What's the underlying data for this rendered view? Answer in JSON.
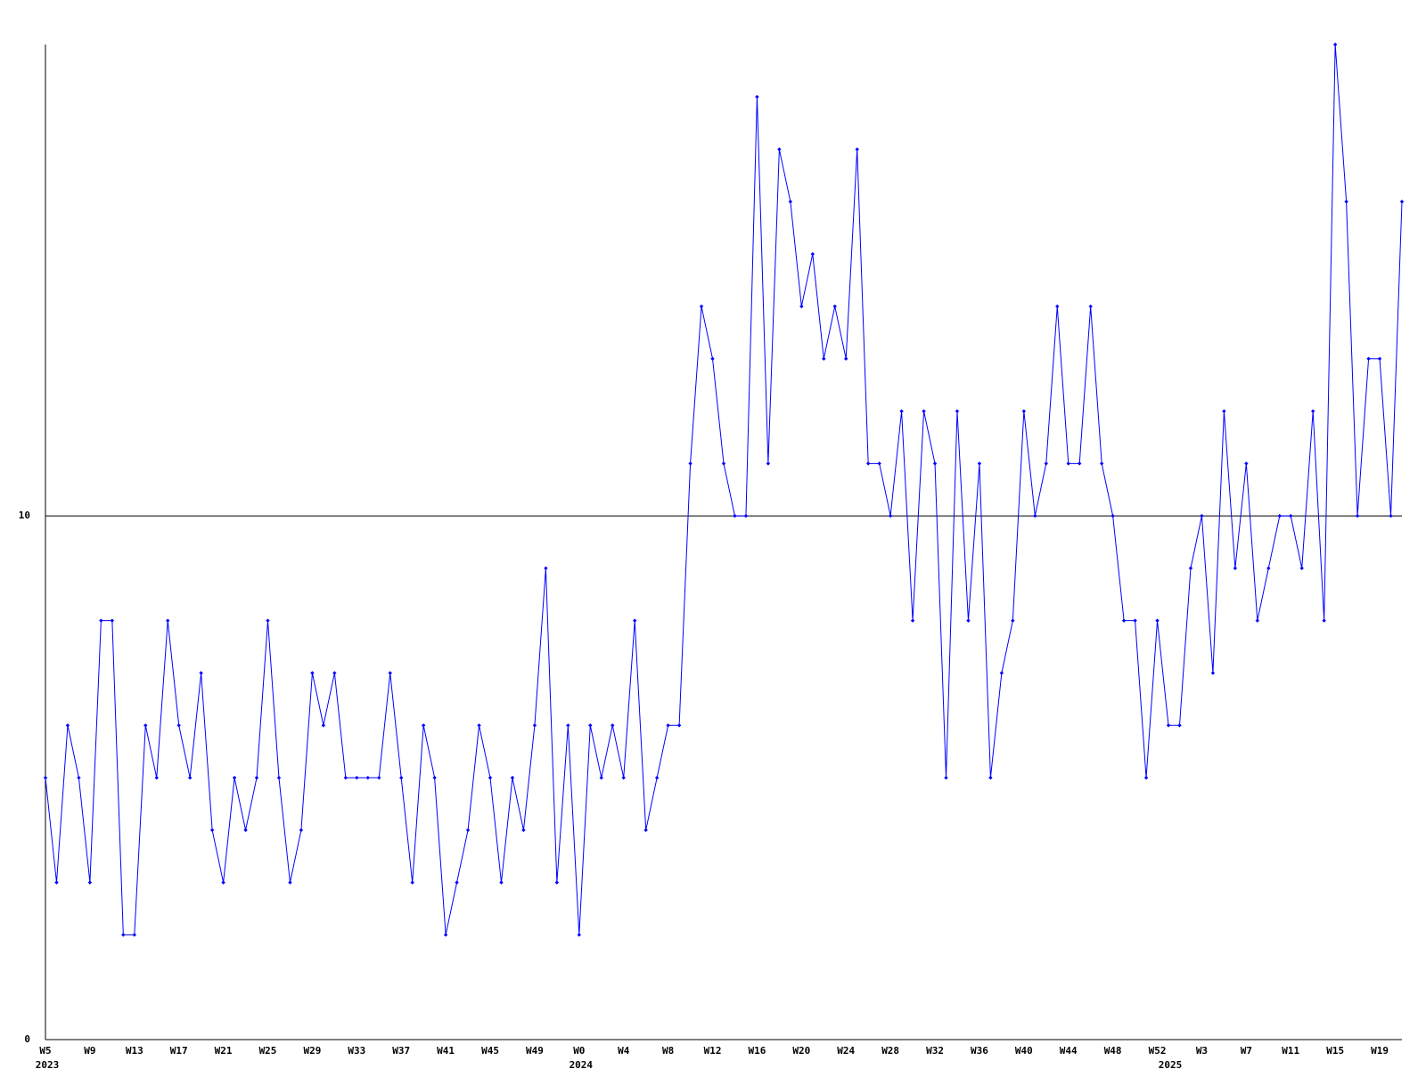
{
  "chart_data": {
    "type": "line",
    "categories": [
      "W5",
      null,
      null,
      null,
      "W9",
      null,
      null,
      null,
      "W13",
      null,
      null,
      null,
      "W17",
      null,
      null,
      null,
      "W21",
      null,
      null,
      null,
      "W25",
      null,
      null,
      null,
      "W29",
      null,
      null,
      null,
      "W33",
      null,
      null,
      null,
      "W37",
      null,
      null,
      null,
      "W41",
      null,
      null,
      null,
      "W45",
      null,
      null,
      null,
      "W49",
      null,
      null,
      null,
      "W0",
      null,
      null,
      null,
      "W4",
      null,
      null,
      null,
      "W8",
      null,
      null,
      null,
      "W12",
      null,
      null,
      null,
      "W16",
      null,
      null,
      null,
      "W20",
      null,
      null,
      null,
      "W24",
      null,
      null,
      null,
      "W28",
      null,
      null,
      null,
      "W32",
      null,
      null,
      null,
      "W36",
      null,
      null,
      null,
      "W40",
      null,
      null,
      null,
      "W44",
      null,
      null,
      null,
      "W48",
      null,
      null,
      null,
      "W52",
      null,
      null,
      null,
      "W3",
      null,
      null,
      null,
      "W7",
      null,
      null,
      null,
      "W11",
      null,
      null,
      null,
      "W15",
      null,
      null,
      null,
      "W19",
      null,
      null
    ],
    "x_groups": [
      {
        "label": "2023",
        "start": 0
      },
      {
        "label": "2024",
        "start": 48
      },
      {
        "label": "2025",
        "start": 101
      }
    ],
    "series": [
      {
        "color": "#0000ff",
        "values": [
          5,
          3,
          6,
          5,
          3,
          8,
          8,
          2,
          2,
          6,
          5,
          8,
          6,
          5,
          7,
          4,
          3,
          5,
          4,
          5,
          8,
          5,
          3,
          4,
          7,
          6,
          7,
          5,
          5,
          5,
          5,
          7,
          5,
          3,
          6,
          5,
          2,
          3,
          4,
          6,
          5,
          3,
          5,
          4,
          6,
          9,
          3,
          6,
          2,
          6,
          5,
          6,
          5,
          8,
          4,
          5,
          6,
          6,
          11,
          14,
          13,
          11,
          10,
          10,
          18,
          11,
          17,
          16,
          14,
          15,
          13,
          14,
          13,
          17,
          11,
          11,
          10,
          12,
          8,
          12,
          11,
          5,
          12,
          8,
          11,
          5,
          7,
          8,
          12,
          10,
          11,
          14,
          11,
          11,
          14,
          11,
          10,
          8,
          8,
          5,
          8,
          6,
          6,
          9,
          10,
          7,
          12,
          9,
          11,
          8,
          9,
          10,
          10,
          9,
          12,
          8,
          19,
          16,
          10,
          13,
          13,
          10,
          16
        ]
      }
    ],
    "ylim": [
      0,
      19
    ],
    "yticks": [
      0,
      10
    ],
    "grid": true
  }
}
